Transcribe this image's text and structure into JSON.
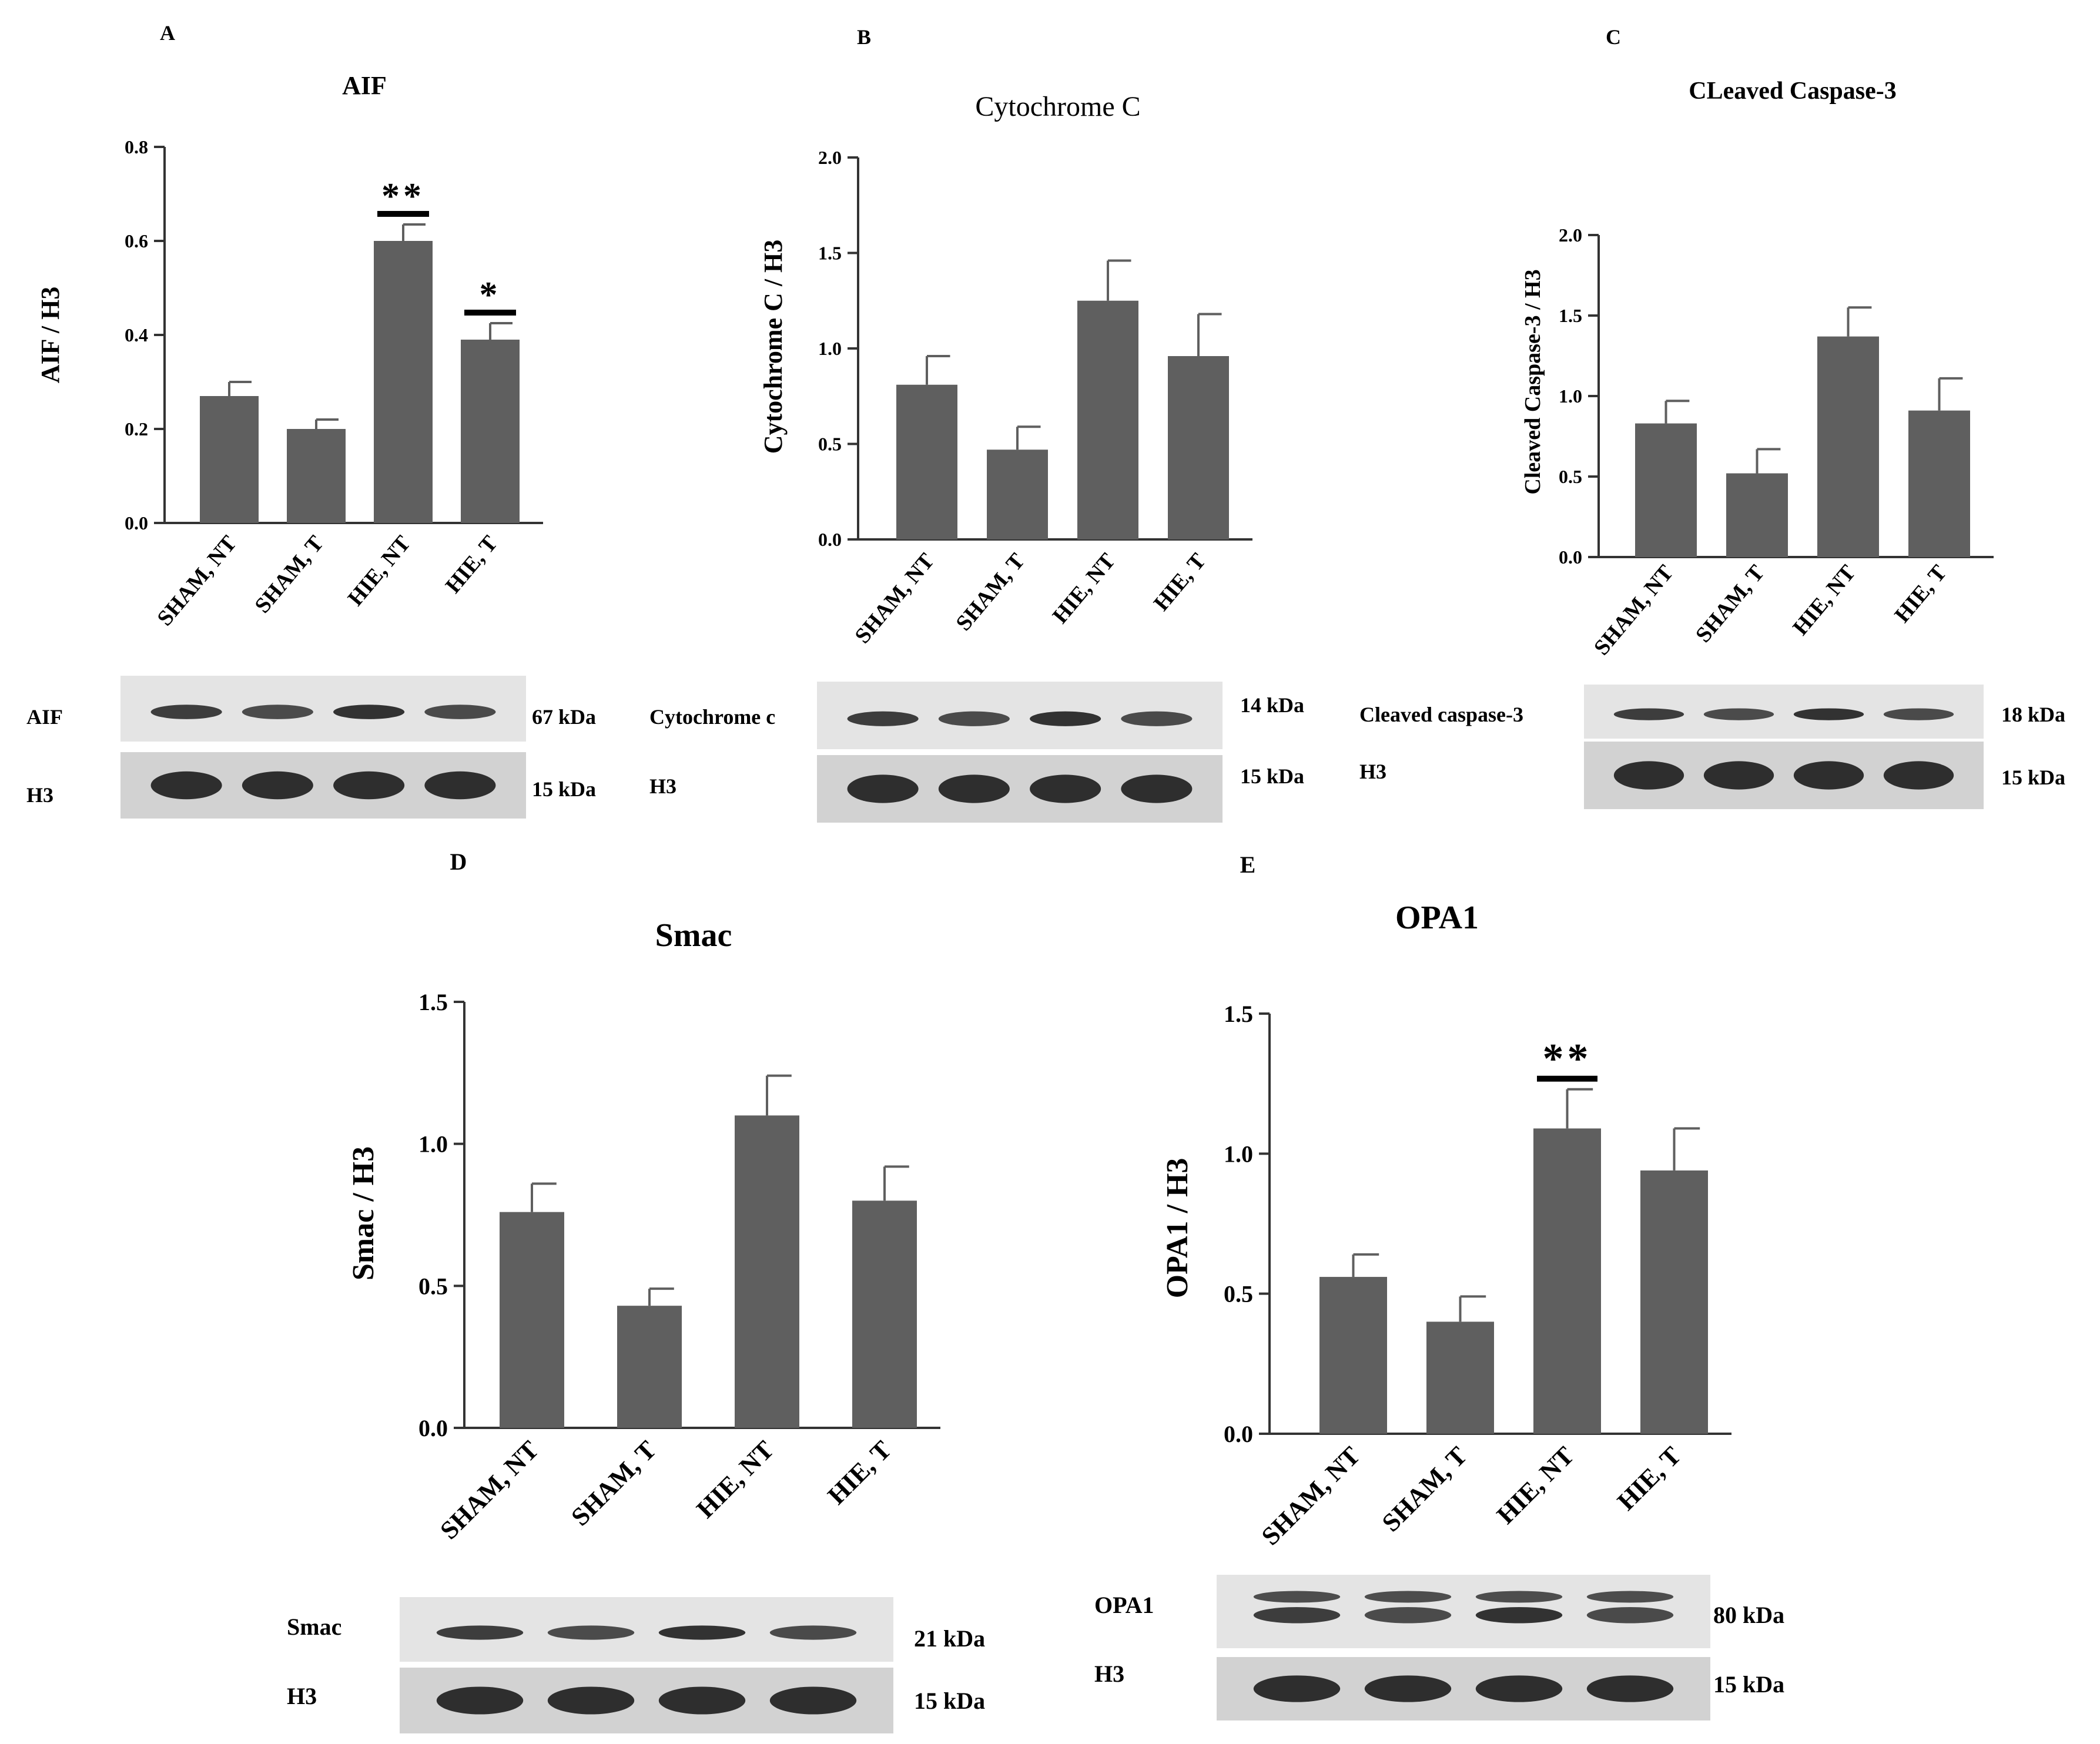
{
  "panels": [
    {
      "letter": "A",
      "title": "AIF",
      "ylabel": "AIF / H3",
      "bands": [
        {
          "label": "AIF",
          "kda": "67 kDa"
        },
        {
          "label": "H3",
          "kda": "15  kDa"
        }
      ],
      "annotations": [
        {
          "category": "HIE, NT",
          "text": "**"
        },
        {
          "category": "HIE, T",
          "text": "*"
        }
      ]
    },
    {
      "letter": "B",
      "title": "Cytochrome C",
      "ylabel": "Cytochrome C / H3",
      "bands": [
        {
          "label": "Cytochrome c",
          "kda": "14 kDa"
        },
        {
          "label": "H3",
          "kda": "15 kDa"
        }
      ],
      "annotations": []
    },
    {
      "letter": "C",
      "title": "CLeaved Caspase-3",
      "ylabel": "Cleaved Caspase-3 / H3",
      "bands": [
        {
          "label": "Cleaved caspase-3",
          "kda": "18 kDa"
        },
        {
          "label": "H3",
          "kda": "15  kDa"
        }
      ],
      "annotations": []
    },
    {
      "letter": "D",
      "title": "Smac",
      "ylabel": "Smac / H3",
      "bands": [
        {
          "label": "Smac",
          "kda": "21 kDa"
        },
        {
          "label": "H3",
          "kda": "15 kDa"
        }
      ],
      "annotations": []
    },
    {
      "letter": "E",
      "title": "OPA1",
      "ylabel": "OPA1 / H3",
      "bands": [
        {
          "label": "OPA1",
          "kda": "80 kDa"
        },
        {
          "label": "H3",
          "kda": "15 kDa"
        }
      ],
      "annotations": [
        {
          "category": "HIE, NT",
          "text": "**"
        }
      ]
    }
  ],
  "colors": {
    "bar": "#5f5f5f",
    "axis": "#333333",
    "text": "#000000"
  },
  "chart_data": [
    {
      "type": "bar",
      "title": "AIF",
      "ylabel": "AIF / H3",
      "categories": [
        "SHAM, NT",
        "SHAM, T",
        "HIE, NT",
        "HIE, T"
      ],
      "values": [
        0.27,
        0.2,
        0.6,
        0.39
      ],
      "errors": [
        0.03,
        0.02,
        0.035,
        0.035
      ],
      "ylim": [
        0,
        0.8
      ],
      "yticks": [
        "0.0",
        "0.2",
        "0.4",
        "0.6",
        "0.8"
      ]
    },
    {
      "type": "bar",
      "title": "Cytochrome C",
      "ylabel": "Cytochrome C / H3",
      "categories": [
        "SHAM, NT",
        "SHAM, T",
        "HIE, NT",
        "HIE, T"
      ],
      "values": [
        0.81,
        0.47,
        1.25,
        0.96
      ],
      "errors": [
        0.15,
        0.12,
        0.21,
        0.22
      ],
      "ylim": [
        0,
        2.0
      ],
      "yticks": [
        "0.0",
        "0.5",
        "1.0",
        "1.5",
        "2.0"
      ]
    },
    {
      "type": "bar",
      "title": "CLeaved Caspase-3",
      "ylabel": "Cleaved Caspase-3 / H3",
      "categories": [
        "SHAM, NT",
        "SHAM, T",
        "HIE, NT",
        "HIE, T"
      ],
      "values": [
        0.83,
        0.52,
        1.37,
        0.91
      ],
      "errors": [
        0.14,
        0.15,
        0.18,
        0.2
      ],
      "ylim": [
        0,
        2.0
      ],
      "yticks": [
        "0.0",
        "0.5",
        "1.0",
        "1.5",
        "2.0"
      ]
    },
    {
      "type": "bar",
      "title": "Smac",
      "ylabel": "Smac / H3",
      "categories": [
        "SHAM, NT",
        "SHAM, T",
        "HIE, NT",
        "HIE, T"
      ],
      "values": [
        0.76,
        0.43,
        1.1,
        0.8
      ],
      "errors": [
        0.1,
        0.06,
        0.14,
        0.12
      ],
      "ylim": [
        0,
        1.5
      ],
      "yticks": [
        "0.0",
        "0.5",
        "1.0",
        "1.5"
      ]
    },
    {
      "type": "bar",
      "title": "OPA1",
      "ylabel": "OPA1 / H3",
      "categories": [
        "SHAM, NT",
        "SHAM, T",
        "HIE, NT",
        "HIE, T"
      ],
      "values": [
        0.56,
        0.4,
        1.09,
        0.94
      ],
      "errors": [
        0.08,
        0.09,
        0.14,
        0.15
      ],
      "ylim": [
        0,
        1.5
      ],
      "yticks": [
        "0.0",
        "0.5",
        "1.0",
        "1.5"
      ]
    }
  ]
}
